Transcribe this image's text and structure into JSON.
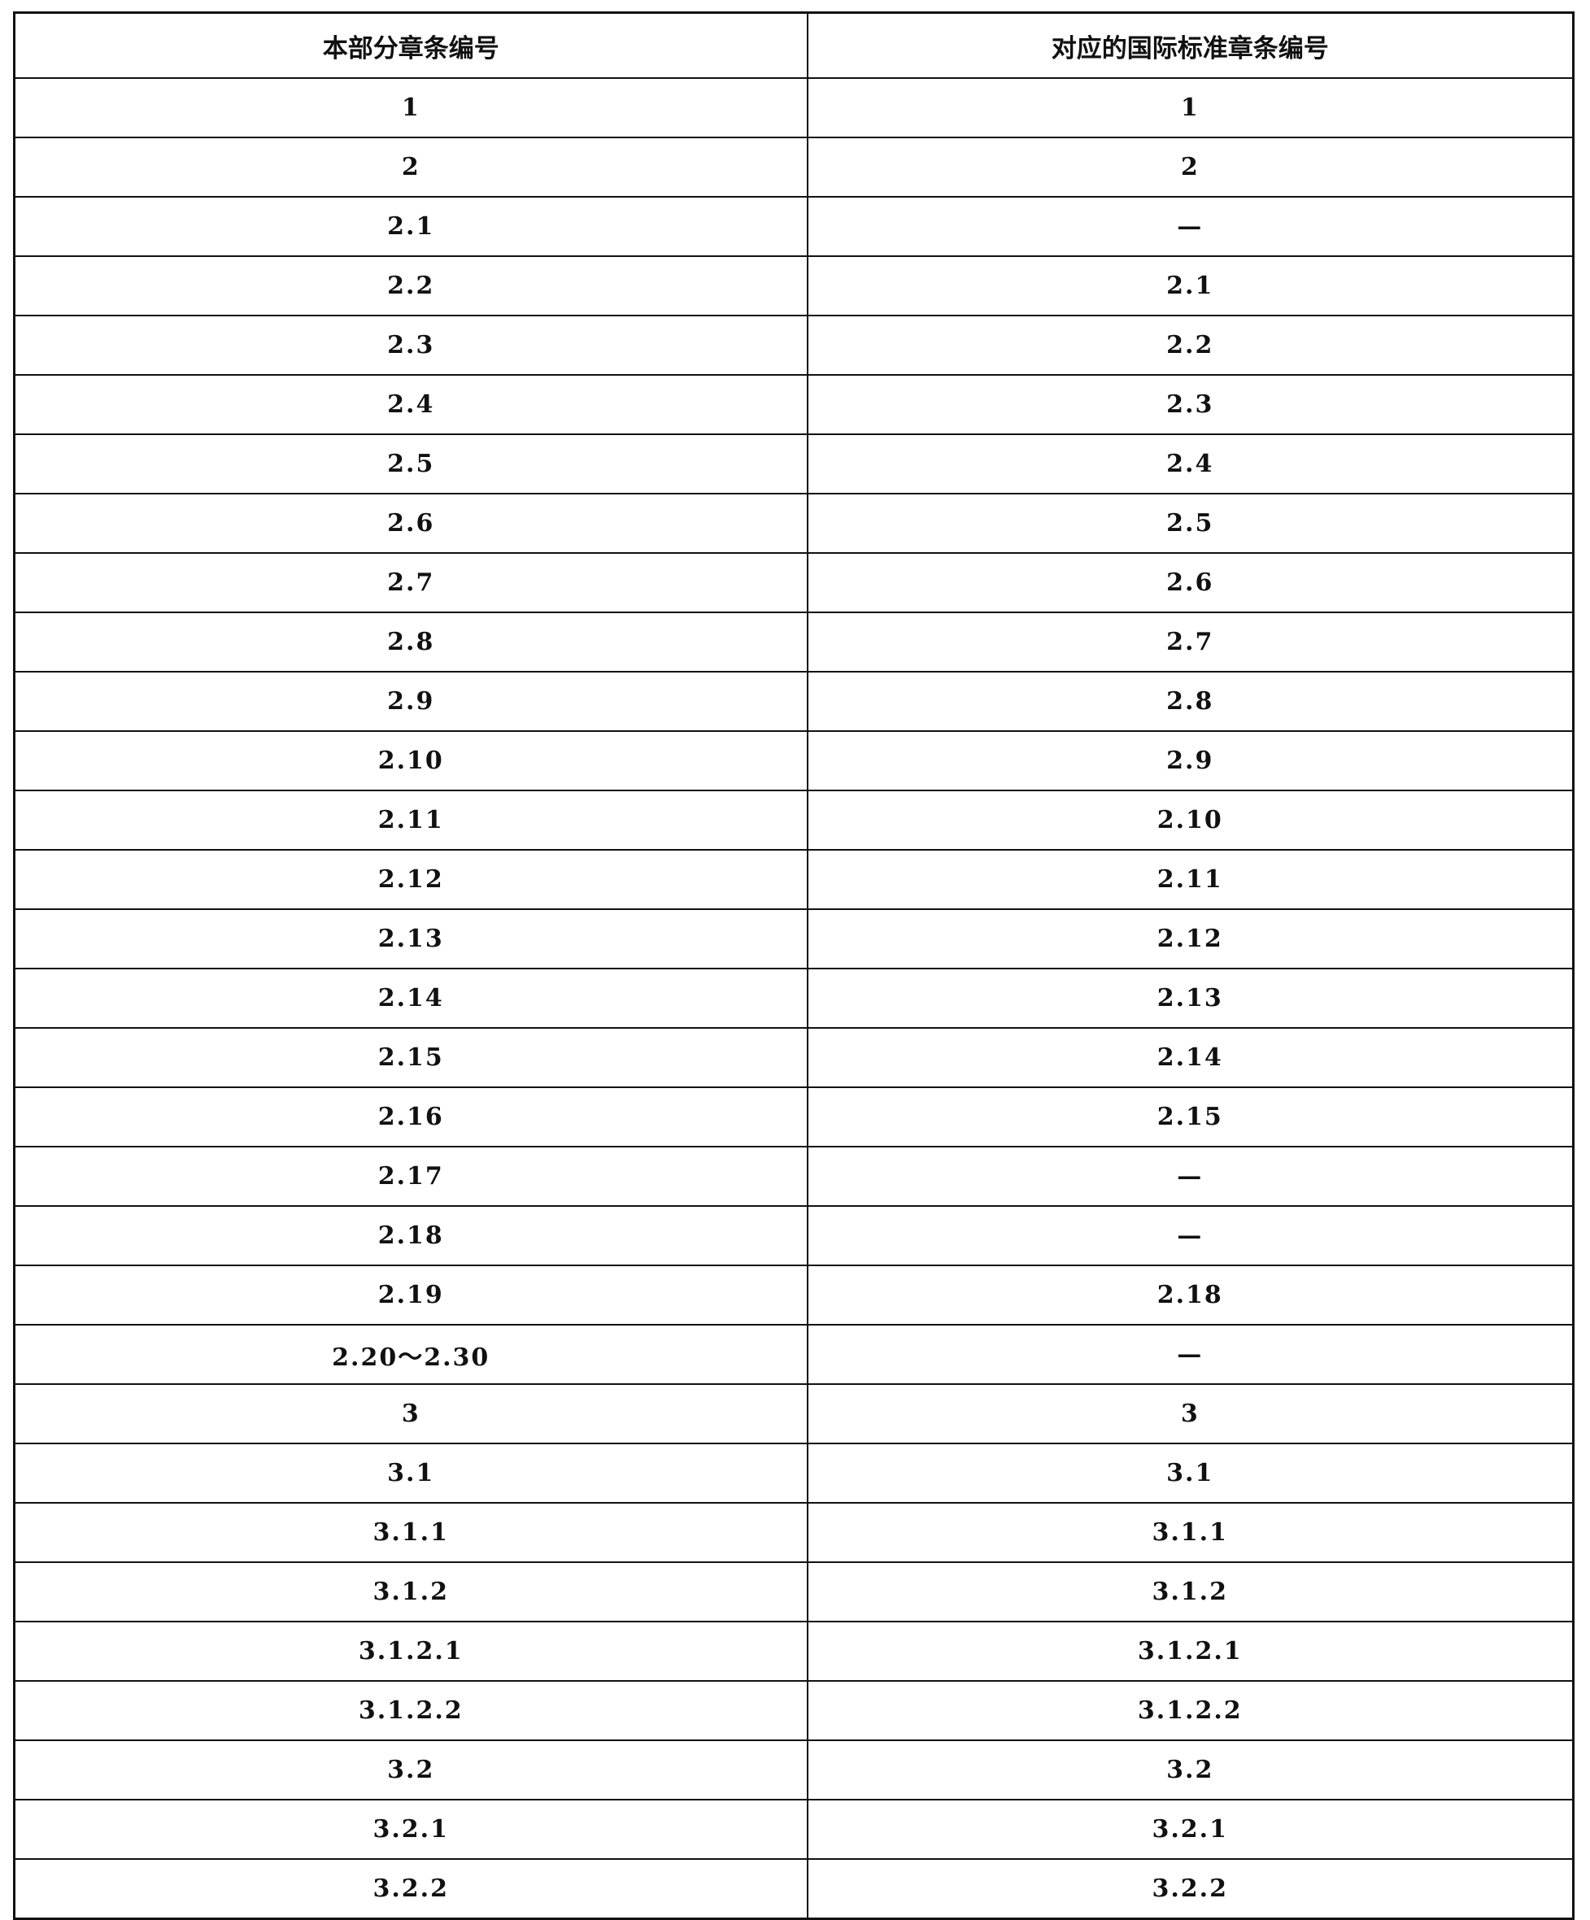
{
  "table": {
    "headers": [
      "本部分章条编号",
      "对应的国际标准章条编号"
    ],
    "rows": [
      [
        "1",
        "1"
      ],
      [
        "2",
        "2"
      ],
      [
        "2.1",
        "—"
      ],
      [
        "2.2",
        "2.1"
      ],
      [
        "2.3",
        "2.2"
      ],
      [
        "2.4",
        "2.3"
      ],
      [
        "2.5",
        "2.4"
      ],
      [
        "2.6",
        "2.5"
      ],
      [
        "2.7",
        "2.6"
      ],
      [
        "2.8",
        "2.7"
      ],
      [
        "2.9",
        "2.8"
      ],
      [
        "2.10",
        "2.9"
      ],
      [
        "2.11",
        "2.10"
      ],
      [
        "2.12",
        "2.11"
      ],
      [
        "2.13",
        "2.12"
      ],
      [
        "2.14",
        "2.13"
      ],
      [
        "2.15",
        "2.14"
      ],
      [
        "2.16",
        "2.15"
      ],
      [
        "2.17",
        "—"
      ],
      [
        "2.18",
        "—"
      ],
      [
        "2.19",
        "2.18"
      ],
      [
        "2.20～2.30",
        "—"
      ],
      [
        "3",
        "3"
      ],
      [
        "3.1",
        "3.1"
      ],
      [
        "3.1.1",
        "3.1.1"
      ],
      [
        "3.1.2",
        "3.1.2"
      ],
      [
        "3.1.2.1",
        "3.1.2.1"
      ],
      [
        "3.1.2.2",
        "3.1.2.2"
      ],
      [
        "3.2",
        "3.2"
      ],
      [
        "3.2.1",
        "3.2.1"
      ],
      [
        "3.2.2",
        "3.2.2"
      ]
    ]
  }
}
